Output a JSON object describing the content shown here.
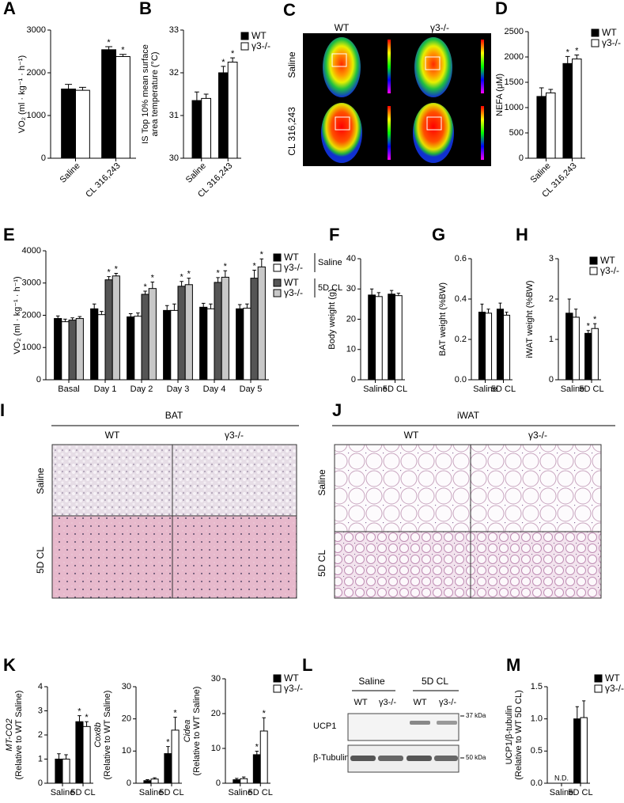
{
  "chart_data": [
    {
      "type": "bar",
      "label": "A",
      "ylabel": [
        "VO₂ (ml · kg⁻¹ · h⁻¹)"
      ],
      "categories": [
        "Saline",
        "CL 316,243"
      ],
      "series": [
        {
          "name": "WT",
          "color": "#000000",
          "values": [
            1620,
            2540
          ],
          "error": [
            110,
            70
          ],
          "sig": [
            null,
            "*"
          ]
        },
        {
          "name": "γ3-/-",
          "color": "#ffffff",
          "values": [
            1590,
            2380
          ],
          "error": [
            70,
            50
          ],
          "sig": [
            null,
            "*"
          ]
        }
      ],
      "ylim": [
        0,
        3000
      ],
      "yticks": [
        0,
        1000,
        2000,
        3000
      ]
    },
    {
      "type": "bar",
      "label": "B",
      "ylabel": [
        "IS Top 10% mean surface",
        "area temperature (°C)"
      ],
      "categories": [
        "Saline",
        "CL 316,243"
      ],
      "series": [
        {
          "name": "WT",
          "color": "#000000",
          "values": [
            31.35,
            32.0
          ],
          "error": [
            0.2,
            0.15
          ],
          "sig": [
            null,
            "*"
          ]
        },
        {
          "name": "γ3-/-",
          "color": "#ffffff",
          "values": [
            31.4,
            32.25
          ],
          "error": [
            0.1,
            0.1
          ],
          "sig": [
            null,
            "*"
          ]
        }
      ],
      "ylim": [
        30,
        33
      ],
      "yticks": [
        30,
        31,
        32,
        33
      ],
      "legend": "upper right"
    },
    {
      "type": "bar",
      "label": "D",
      "ylabel": [
        "NEFA (μM)"
      ],
      "categories": [
        "Saline",
        "CL 316,243"
      ],
      "series": [
        {
          "name": "WT",
          "color": "#000000",
          "values": [
            1220,
            1870
          ],
          "error": [
            170,
            140
          ],
          "sig": [
            null,
            "*"
          ]
        },
        {
          "name": "γ3-/-",
          "color": "#ffffff",
          "values": [
            1290,
            1960
          ],
          "error": [
            70,
            80
          ],
          "sig": [
            null,
            "*"
          ]
        }
      ],
      "ylim": [
        0,
        2500
      ],
      "yticks": [
        0,
        500,
        1000,
        1500,
        2000,
        2500
      ],
      "legend": "upper right"
    },
    {
      "type": "bar",
      "label": "E",
      "ylabel": [
        "VO₂ (ml · kg⁻¹ · h⁻¹)"
      ],
      "categories": [
        "Basal",
        "Day 1",
        "Day 2",
        "Day 3",
        "Day 4",
        "Day 5"
      ],
      "legend_groups": [
        "Saline",
        "5D CL"
      ],
      "series": [
        {
          "name": "WT",
          "group": 0,
          "color": "#000000",
          "values": [
            1900,
            2200,
            1950,
            2150,
            2250,
            2200
          ],
          "error": [
            80,
            150,
            100,
            150,
            120,
            130
          ]
        },
        {
          "name": "γ3-/-",
          "group": 0,
          "color": "#ffffff",
          "values": [
            1800,
            2020,
            1970,
            2150,
            2200,
            2220
          ],
          "error": [
            80,
            100,
            100,
            200,
            150,
            130
          ]
        },
        {
          "name": "WT",
          "group": 1,
          "color": "#555555",
          "values": [
            1850,
            3100,
            2650,
            2900,
            3020,
            3150
          ],
          "error": [
            70,
            100,
            100,
            150,
            150,
            250
          ],
          "sig": [
            null,
            "*",
            "*",
            "*",
            "*",
            "*"
          ]
        },
        {
          "name": "γ3-/-",
          "group": 1,
          "color": "#c8c8c8",
          "values": [
            1900,
            3220,
            2830,
            2950,
            3180,
            3500
          ],
          "error": [
            60,
            80,
            200,
            200,
            200,
            250
          ],
          "sig": [
            null,
            "*",
            "*",
            "*",
            "*",
            "*"
          ]
        }
      ],
      "ylim": [
        0,
        4000
      ],
      "yticks": [
        0,
        1000,
        2000,
        3000,
        4000
      ],
      "legend": "upper right"
    },
    {
      "type": "bar",
      "label": "F",
      "ylabel": [
        "Body weight (g)"
      ],
      "categories": [
        "Saline",
        "5D CL"
      ],
      "series": [
        {
          "name": "WT",
          "color": "#000000",
          "values": [
            28,
            28.3
          ],
          "error": [
            2,
            1.2
          ]
        },
        {
          "name": "γ3-/-",
          "color": "#ffffff",
          "values": [
            27.5,
            27.8
          ],
          "error": [
            1.3,
            0.8
          ]
        }
      ],
      "ylim": [
        0,
        40
      ],
      "yticks": [
        0,
        10,
        20,
        30,
        40
      ]
    },
    {
      "type": "bar",
      "label": "G",
      "ylabel": [
        "BAT weight (%BW)"
      ],
      "categories": [
        "Saline",
        "5D CL"
      ],
      "series": [
        {
          "name": "WT",
          "color": "#000000",
          "values": [
            0.335,
            0.35
          ],
          "error": [
            0.04,
            0.03
          ]
        },
        {
          "name": "γ3-/-",
          "color": "#ffffff",
          "values": [
            0.33,
            0.32
          ],
          "error": [
            0.02,
            0.015
          ]
        }
      ],
      "ylim": [
        0,
        0.6
      ],
      "yticks": [
        {
          "value": 0,
          "label": "0.0"
        },
        0.2,
        0.4,
        0.6
      ]
    },
    {
      "type": "bar",
      "label": "H",
      "ylabel": [
        "iWAT weight (%BW)"
      ],
      "categories": [
        "Saline",
        "5D CL"
      ],
      "series": [
        {
          "name": "WT",
          "color": "#000000",
          "values": [
            1.65,
            1.15
          ],
          "error": [
            0.35,
            0.07
          ],
          "sig": [
            null,
            "*"
          ]
        },
        {
          "name": "γ3-/-",
          "color": "#ffffff",
          "values": [
            1.55,
            1.27
          ],
          "error": [
            0.2,
            0.12
          ],
          "sig": [
            null,
            "*"
          ]
        }
      ],
      "ylim": [
        0,
        3
      ],
      "yticks": [
        0,
        1,
        2,
        3
      ],
      "legend": "upper right"
    },
    {
      "type": "bar",
      "label": "K",
      "ylabel": [
        "MT-CO2",
        "(Relative to WT Saline)"
      ],
      "categories": [
        "Saline",
        "5D CL"
      ],
      "series": [
        {
          "name": "WT",
          "color": "#000000",
          "values": [
            1.0,
            2.55
          ],
          "error": [
            0.22,
            0.25
          ],
          "sig": [
            null,
            "*"
          ]
        },
        {
          "name": "γ3-/-",
          "color": "#ffffff",
          "values": [
            1.0,
            2.35
          ],
          "error": [
            0.18,
            0.2
          ],
          "sig": [
            null,
            "*"
          ]
        }
      ],
      "ylim": [
        0,
        4
      ],
      "yticks": [
        0,
        1,
        2,
        3,
        4
      ]
    },
    {
      "type": "bar",
      "ylabel": [
        "Cox8b",
        "(Relative to WT Saline)"
      ],
      "categories": [
        "Saline",
        "5D CL"
      ],
      "series": [
        {
          "name": "WT",
          "color": "#000000",
          "values": [
            0.8,
            9.2
          ],
          "error": [
            0.3,
            2.2
          ],
          "sig": [
            null,
            "*"
          ]
        },
        {
          "name": "γ3-/-",
          "color": "#ffffff",
          "values": [
            1.3,
            16.5
          ],
          "error": [
            0.4,
            4
          ],
          "sig": [
            null,
            "*"
          ]
        }
      ],
      "ylim": [
        0,
        30
      ],
      "yticks": [
        0,
        10,
        20,
        30
      ]
    },
    {
      "type": "bar",
      "ylabel": [
        "Cidea",
        "(Relative to WT Saline)"
      ],
      "categories": [
        "Saline",
        "5D CL"
      ],
      "series": [
        {
          "name": "WT",
          "color": "#000000",
          "values": [
            1.0,
            8.2
          ],
          "error": [
            0.4,
            1.0
          ],
          "sig": [
            null,
            "*"
          ]
        },
        {
          "name": "γ3-/-",
          "color": "#ffffff",
          "values": [
            1.3,
            15
          ],
          "error": [
            0.5,
            3.8
          ],
          "sig": [
            null,
            "*"
          ]
        }
      ],
      "ylim": [
        0,
        30
      ],
      "yticks": [
        0,
        10,
        20,
        30
      ],
      "legend": "upper right"
    },
    {
      "type": "bar",
      "label": "M",
      "ylabel": [
        "UCP1/β-tubulin",
        "(Relative to WT 5D CL)"
      ],
      "categories": [
        "Saline",
        "5D CL"
      ],
      "annotation": "N.D.",
      "series": [
        {
          "name": "WT",
          "color": "#000000",
          "values": [
            null,
            1.0
          ],
          "error": [
            null,
            0.19
          ]
        },
        {
          "name": "γ3-/-",
          "color": "#ffffff",
          "values": [
            null,
            1.02
          ],
          "error": [
            null,
            0.26
          ]
        }
      ],
      "ylim": [
        0,
        1.5
      ],
      "yticks": [
        {
          "value": 0,
          "label": "0.0"
        },
        0.5,
        {
          "value": 1,
          "label": "1.0"
        },
        1.5
      ],
      "legend": "upper right"
    }
  ],
  "thermal_image": {
    "label": "C",
    "columns": [
      "WT",
      "γ3-/-"
    ],
    "rows": [
      "Saline",
      "CL 316,243"
    ]
  },
  "histology": [
    {
      "label": "I",
      "title": "BAT",
      "columns": [
        "WT",
        "γ3-/-"
      ],
      "rows": [
        "Saline",
        "5D CL"
      ]
    },
    {
      "label": "J",
      "title": "iWAT",
      "columns": [
        "WT",
        "γ3-/-"
      ],
      "rows": [
        "Saline",
        "5D CL"
      ]
    }
  ],
  "western_blot": {
    "label": "L",
    "groups": [
      "Saline",
      "5D CL"
    ],
    "lanes": [
      "WT",
      "γ3-/-",
      "WT",
      "γ3-/-"
    ],
    "rows": [
      "UCP1",
      "β-Tubulin"
    ],
    "markers": [
      "37 kDa",
      "50 kDa"
    ]
  }
}
